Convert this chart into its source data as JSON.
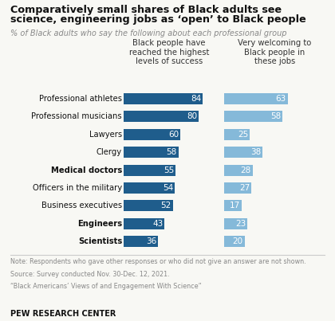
{
  "title_line1": "Comparatively small shares of Black adults see",
  "title_line2": "science, engineering jobs as ‘open’ to Black people",
  "subtitle": "% of Black adults who say the following about each professional group",
  "col1_header": "Black people have\nreached the highest\nlevels of success",
  "col2_header": "Very welcoming to\nBlack people in\nthese jobs",
  "categories": [
    "Professional athletes",
    "Professional musicians",
    "Lawyers",
    "Clergy",
    "Medical doctors",
    "Officers in the military",
    "Business executives",
    "Engineers",
    "Scientists"
  ],
  "bold_categories": [
    "Medical doctors",
    "Engineers",
    "Scientists"
  ],
  "values_left": [
    84,
    80,
    60,
    58,
    55,
    54,
    52,
    43,
    36
  ],
  "values_right": [
    63,
    58,
    25,
    38,
    28,
    27,
    17,
    23,
    20
  ],
  "color_left": "#1f5d8c",
  "color_right": "#85b9d9",
  "note_line1": "Note: Respondents who gave other responses or who did not give an answer are not shown.",
  "note_line2": "Source: Survey conducted Nov. 30-Dec. 12, 2021.",
  "note_line3": "“Black Americans’ Views of and Engagement With Science”",
  "footer": "PEW RESEARCH CENTER",
  "bg_color": "#f8f8f4",
  "title_color": "#111111",
  "subtitle_color": "#888888",
  "note_color": "#888888",
  "bar_label_color": "#ffffff",
  "cat_label_color": "#111111"
}
